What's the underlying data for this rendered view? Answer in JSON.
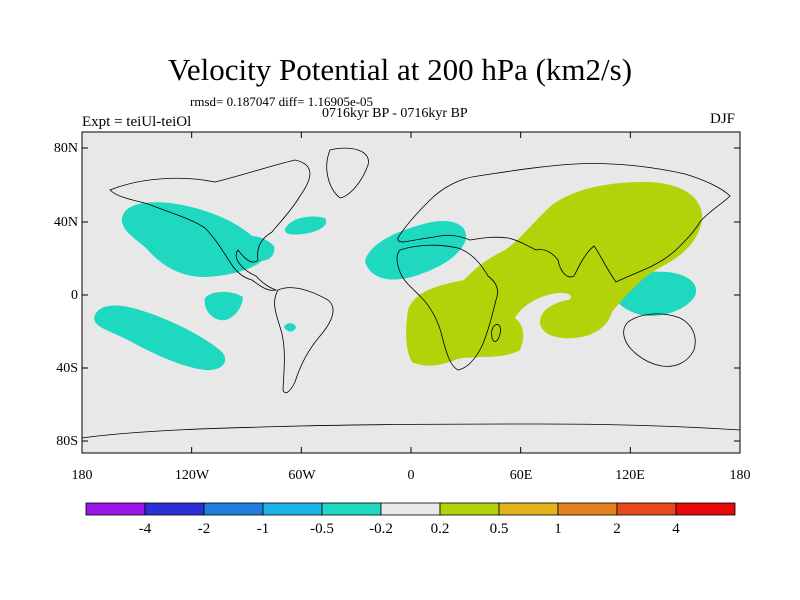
{
  "title": "Velocity Potential at 200 hPa (km2/s)",
  "stats_line": "rmsd= 0.187047 diff= 1.16905e-05",
  "subtitle": "0716kyr BP - 0716kyr BP",
  "experiment": "Expt = teiUl-teiOl",
  "season": "DJF",
  "map": {
    "background_color": "#e8e8e8",
    "lat_labels": [
      "80N",
      "40N",
      "0",
      "40S",
      "80S"
    ],
    "lon_labels": [
      "180",
      "120W",
      "60W",
      "0",
      "60E",
      "120E",
      "180"
    ],
    "regions": {
      "negative_color": "#1ed8c0",
      "positive_color": "#b4d20a"
    }
  },
  "colorbar": {
    "colors": [
      "#9b16e6",
      "#2c2ed8",
      "#1e7ee0",
      "#1ab4e6",
      "#1ed8c0",
      "#e8e8e8",
      "#b4d20a",
      "#e0b41a",
      "#e6821e",
      "#e64a1a",
      "#e60a0a"
    ],
    "labels": [
      "-4",
      "-2",
      "-1",
      "-0.5",
      "-0.2",
      "0.2",
      "0.5",
      "1",
      "2",
      "4"
    ]
  }
}
